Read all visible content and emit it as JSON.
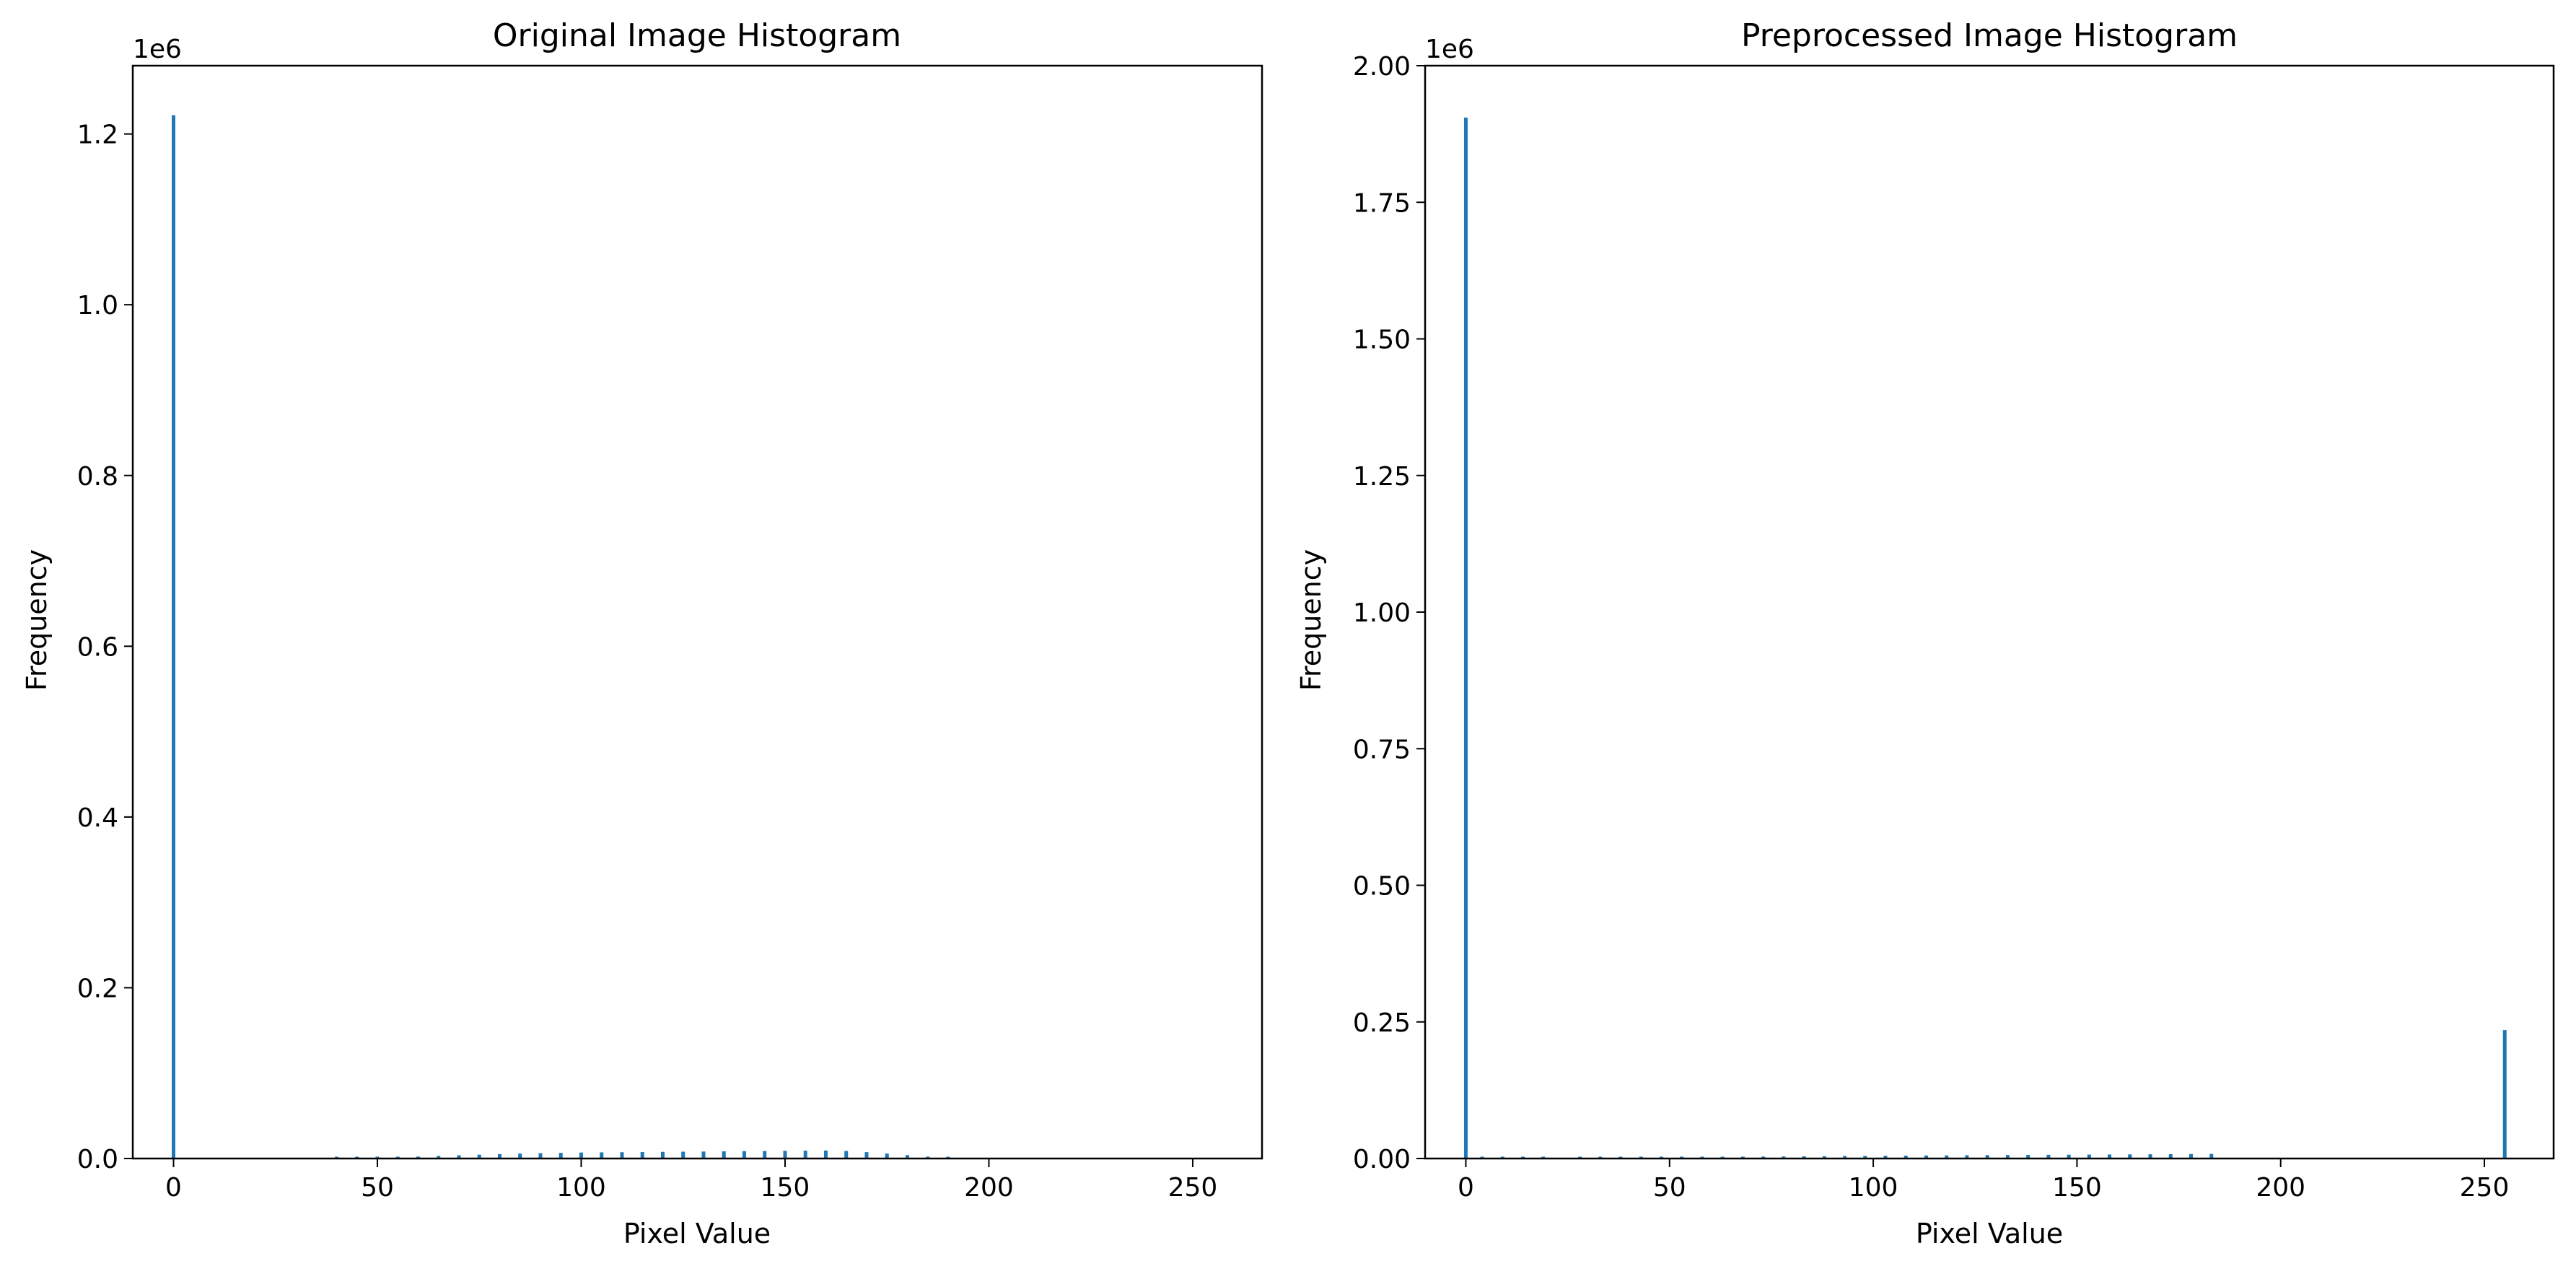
{
  "colors": {
    "bar": "#1f77b4",
    "axes": "#000000",
    "background": "#ffffff"
  },
  "chart_data": [
    {
      "type": "bar",
      "title": "Original Image Histogram",
      "xlabel": "Pixel Value",
      "ylabel": "Frequency",
      "y_multiplier": "1e6",
      "xlim": [
        -10,
        267
      ],
      "ylim": [
        0,
        1.28
      ],
      "xticks": [
        0,
        50,
        100,
        150,
        200,
        250
      ],
      "yticks": [
        0.0,
        0.2,
        0.4,
        0.6,
        0.8,
        1.0,
        1.2
      ],
      "ytick_labels": [
        "0.0",
        "0.2",
        "0.4",
        "0.6",
        "0.8",
        "1.0",
        "1.2"
      ],
      "grid": false,
      "bars": [
        {
          "x": 0,
          "y": 1.222
        },
        {
          "x": 40,
          "y": 0.0005
        },
        {
          "x": 45,
          "y": 0.0008
        },
        {
          "x": 50,
          "y": 0.001
        },
        {
          "x": 55,
          "y": 0.0015
        },
        {
          "x": 60,
          "y": 0.0022
        },
        {
          "x": 65,
          "y": 0.003
        },
        {
          "x": 70,
          "y": 0.0038
        },
        {
          "x": 75,
          "y": 0.0045
        },
        {
          "x": 80,
          "y": 0.0052
        },
        {
          "x": 85,
          "y": 0.0058
        },
        {
          "x": 90,
          "y": 0.0062
        },
        {
          "x": 95,
          "y": 0.0066
        },
        {
          "x": 100,
          "y": 0.007
        },
        {
          "x": 105,
          "y": 0.0072
        },
        {
          "x": 110,
          "y": 0.0074
        },
        {
          "x": 115,
          "y": 0.0076
        },
        {
          "x": 120,
          "y": 0.0078
        },
        {
          "x": 125,
          "y": 0.008
        },
        {
          "x": 130,
          "y": 0.0082
        },
        {
          "x": 135,
          "y": 0.0084
        },
        {
          "x": 140,
          "y": 0.0086
        },
        {
          "x": 145,
          "y": 0.0088
        },
        {
          "x": 150,
          "y": 0.009
        },
        {
          "x": 155,
          "y": 0.0092
        },
        {
          "x": 160,
          "y": 0.0093
        },
        {
          "x": 165,
          "y": 0.0088
        },
        {
          "x": 170,
          "y": 0.0075
        },
        {
          "x": 175,
          "y": 0.0058
        },
        {
          "x": 180,
          "y": 0.004
        },
        {
          "x": 185,
          "y": 0.0022
        },
        {
          "x": 190,
          "y": 0.0008
        }
      ]
    },
    {
      "type": "bar",
      "title": "Preprocessed Image Histogram",
      "xlabel": "Pixel Value",
      "ylabel": "Frequency",
      "y_multiplier": "1e6",
      "xlim": [
        -10,
        267
      ],
      "ylim": [
        0,
        2.0
      ],
      "xticks": [
        0,
        50,
        100,
        150,
        200,
        250
      ],
      "yticks": [
        0.0,
        0.25,
        0.5,
        0.75,
        1.0,
        1.25,
        1.5,
        1.75,
        2.0
      ],
      "ytick_labels": [
        "0.00",
        "0.25",
        "0.50",
        "0.75",
        "1.00",
        "1.25",
        "1.50",
        "1.75",
        "2.00"
      ],
      "grid": false,
      "bars": [
        {
          "x": 0,
          "y": 1.905
        },
        {
          "x": 4,
          "y": 0.0012
        },
        {
          "x": 9,
          "y": 0.0012
        },
        {
          "x": 14,
          "y": 0.0013
        },
        {
          "x": 19,
          "y": 0.0013
        },
        {
          "x": 28,
          "y": 0.0015
        },
        {
          "x": 33,
          "y": 0.0016
        },
        {
          "x": 38,
          "y": 0.0018
        },
        {
          "x": 43,
          "y": 0.002
        },
        {
          "x": 48,
          "y": 0.0022
        },
        {
          "x": 53,
          "y": 0.0025
        },
        {
          "x": 58,
          "y": 0.0027
        },
        {
          "x": 63,
          "y": 0.003
        },
        {
          "x": 68,
          "y": 0.0032
        },
        {
          "x": 73,
          "y": 0.0035
        },
        {
          "x": 78,
          "y": 0.0037
        },
        {
          "x": 83,
          "y": 0.004
        },
        {
          "x": 88,
          "y": 0.0042
        },
        {
          "x": 93,
          "y": 0.0045
        },
        {
          "x": 98,
          "y": 0.0047
        },
        {
          "x": 103,
          "y": 0.005
        },
        {
          "x": 108,
          "y": 0.0052
        },
        {
          "x": 113,
          "y": 0.0055
        },
        {
          "x": 118,
          "y": 0.0057
        },
        {
          "x": 123,
          "y": 0.006
        },
        {
          "x": 128,
          "y": 0.0062
        },
        {
          "x": 133,
          "y": 0.0064
        },
        {
          "x": 138,
          "y": 0.0066
        },
        {
          "x": 143,
          "y": 0.0068
        },
        {
          "x": 148,
          "y": 0.007
        },
        {
          "x": 153,
          "y": 0.0072
        },
        {
          "x": 158,
          "y": 0.0074
        },
        {
          "x": 163,
          "y": 0.0076
        },
        {
          "x": 168,
          "y": 0.0078
        },
        {
          "x": 173,
          "y": 0.008
        },
        {
          "x": 178,
          "y": 0.0082
        },
        {
          "x": 183,
          "y": 0.0084
        },
        {
          "x": 255,
          "y": 0.235
        }
      ]
    }
  ]
}
